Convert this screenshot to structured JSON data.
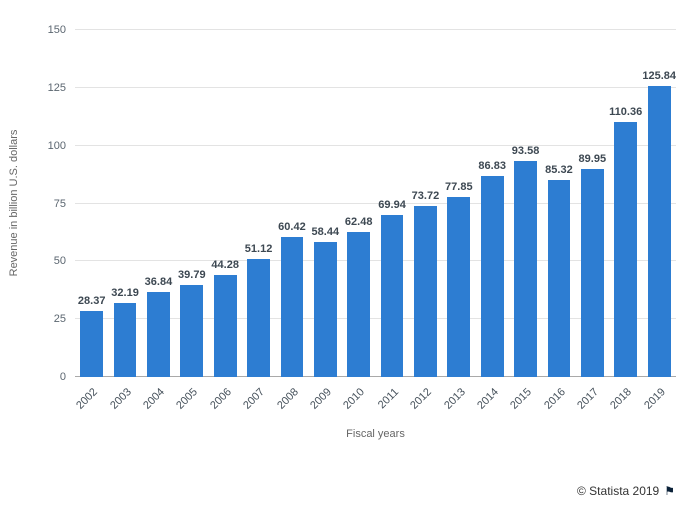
{
  "chart_data": {
    "type": "bar",
    "categories": [
      "2002",
      "2003",
      "2004",
      "2005",
      "2006",
      "2007",
      "2008",
      "2009",
      "2010",
      "2011",
      "2012",
      "2013",
      "2014",
      "2015",
      "2016",
      "2017",
      "2018",
      "2019"
    ],
    "values": [
      28.37,
      32.19,
      36.84,
      39.79,
      44.28,
      51.12,
      60.42,
      58.44,
      62.48,
      69.94,
      73.72,
      77.85,
      86.83,
      93.58,
      85.32,
      89.95,
      110.36,
      125.84
    ],
    "xlabel": "Fiscal years",
    "ylabel": "Revenue in billion U.S. dollars",
    "ylim": [
      0,
      150
    ],
    "yticks": [
      0,
      25,
      50,
      75,
      100,
      125,
      150
    ],
    "grid": true,
    "legend": "none",
    "bar_color": "#2d7dd2"
  },
  "footer": {
    "attribution": "© Statista 2019",
    "flag_icon": "⚑"
  }
}
